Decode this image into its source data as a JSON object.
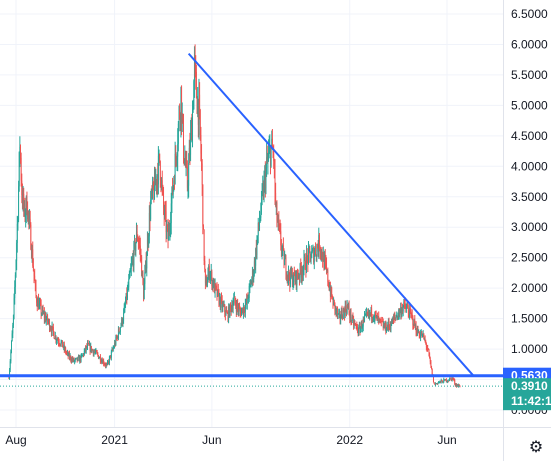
{
  "chart_data": {
    "type": "candlestick",
    "y_axis": {
      "ticks": [
        "6.5000",
        "6.0000",
        "5.5000",
        "5.0000",
        "4.5000",
        "4.0000",
        "3.5000",
        "3.0000",
        "2.5000",
        "2.0000",
        "1.5000",
        "1.0000",
        "0.5000",
        "0.0000"
      ],
      "range": [
        -0.3,
        6.7
      ]
    },
    "x_axis": {
      "ticks": [
        "Aug",
        "2021",
        "Jun",
        "2022",
        "Jun"
      ]
    },
    "price_series": [
      [
        "2020-07-21",
        0.55
      ],
      [
        "2020-07-24",
        0.95
      ],
      [
        "2020-07-28",
        1.5
      ],
      [
        "2020-08-01",
        2.5
      ],
      [
        "2020-08-04",
        3.3
      ],
      [
        "2020-08-07",
        4.4
      ],
      [
        "2020-08-10",
        3.6
      ],
      [
        "2020-08-14",
        3.2
      ],
      [
        "2020-08-18",
        3.4
      ],
      [
        "2020-08-24",
        2.8
      ],
      [
        "2020-09-01",
        1.85
      ],
      [
        "2020-09-10",
        1.6
      ],
      [
        "2020-09-20",
        1.45
      ],
      [
        "2020-10-01",
        1.2
      ],
      [
        "2020-10-10",
        1.1
      ],
      [
        "2020-10-20",
        0.9
      ],
      [
        "2020-10-30",
        0.8
      ],
      [
        "2020-11-10",
        0.85
      ],
      [
        "2020-11-20",
        1.05
      ],
      [
        "2020-12-01",
        0.95
      ],
      [
        "2020-12-10",
        0.85
      ],
      [
        "2020-12-20",
        0.72
      ],
      [
        "2020-12-28",
        0.95
      ],
      [
        "2021-01-05",
        1.2
      ],
      [
        "2021-01-15",
        1.55
      ],
      [
        "2021-01-25",
        2.2
      ],
      [
        "2021-02-05",
        2.9
      ],
      [
        "2021-02-10",
        2.6
      ],
      [
        "2021-02-15",
        1.9
      ],
      [
        "2021-02-20",
        2.6
      ],
      [
        "2021-02-26",
        3.4
      ],
      [
        "2021-03-05",
        3.7
      ],
      [
        "2021-03-12",
        4.1
      ],
      [
        "2021-03-18",
        3.3
      ],
      [
        "2021-03-25",
        2.8
      ],
      [
        "2021-04-01",
        3.6
      ],
      [
        "2021-04-08",
        4.4
      ],
      [
        "2021-04-14",
        5.2
      ],
      [
        "2021-04-18",
        4.3
      ],
      [
        "2021-04-24",
        3.7
      ],
      [
        "2021-05-01",
        4.7
      ],
      [
        "2021-05-05",
        5.6
      ],
      [
        "2021-05-08",
        5.2
      ],
      [
        "2021-05-12",
        4.9
      ],
      [
        "2021-05-16",
        4.0
      ],
      [
        "2021-05-19",
        2.8
      ],
      [
        "2021-05-22",
        2.0
      ],
      [
        "2021-05-28",
        2.3
      ],
      [
        "2021-06-05",
        2.0
      ],
      [
        "2021-06-15",
        1.75
      ],
      [
        "2021-06-25",
        1.55
      ],
      [
        "2021-07-05",
        1.8
      ],
      [
        "2021-07-15",
        1.6
      ],
      [
        "2021-07-25",
        1.75
      ],
      [
        "2021-08-05",
        2.3
      ],
      [
        "2021-08-15",
        3.2
      ],
      [
        "2021-08-25",
        4.0
      ],
      [
        "2021-09-01",
        4.3
      ],
      [
        "2021-09-05",
        4.15
      ],
      [
        "2021-09-08",
        3.3
      ],
      [
        "2021-09-12",
        3.0
      ],
      [
        "2021-09-20",
        2.5
      ],
      [
        "2021-09-28",
        2.2
      ],
      [
        "2021-10-08",
        2.15
      ],
      [
        "2021-10-18",
        2.3
      ],
      [
        "2021-10-28",
        2.5
      ],
      [
        "2021-11-05",
        2.55
      ],
      [
        "2021-11-15",
        2.75
      ],
      [
        "2021-11-25",
        2.3
      ],
      [
        "2021-12-05",
        1.8
      ],
      [
        "2021-12-15",
        1.5
      ],
      [
        "2021-12-28",
        1.7
      ],
      [
        "2022-01-05",
        1.45
      ],
      [
        "2022-01-15",
        1.3
      ],
      [
        "2022-01-25",
        1.5
      ],
      [
        "2022-02-05",
        1.6
      ],
      [
        "2022-02-15",
        1.45
      ],
      [
        "2022-02-25",
        1.35
      ],
      [
        "2022-03-05",
        1.4
      ],
      [
        "2022-03-15",
        1.55
      ],
      [
        "2022-03-25",
        1.7
      ],
      [
        "2022-04-01",
        1.65
      ],
      [
        "2022-04-08",
        1.5
      ],
      [
        "2022-04-15",
        1.3
      ],
      [
        "2022-04-25",
        1.2
      ],
      [
        "2022-05-02",
        1.0
      ],
      [
        "2022-05-08",
        0.65
      ],
      [
        "2022-05-12",
        0.42
      ],
      [
        "2022-05-18",
        0.45
      ],
      [
        "2022-05-28",
        0.48
      ],
      [
        "2022-06-05",
        0.5
      ],
      [
        "2022-06-10",
        0.52
      ],
      [
        "2022-06-14",
        0.42
      ],
      [
        "2022-06-18",
        0.4
      ],
      [
        "2022-06-22",
        0.39
      ]
    ],
    "drawings": [
      {
        "kind": "trendline",
        "from": [
          "2021-04-26",
          5.85
        ],
        "to": [
          "2022-07-12",
          0.563
        ],
        "color": "#2962ff"
      },
      {
        "kind": "horizontal",
        "value": 0.563,
        "color": "#2962ff"
      }
    ],
    "last_price_line": {
      "value": 0.391,
      "color": "#26a69a"
    },
    "price_badges": [
      {
        "text": "0.5630",
        "value": 0.563,
        "color": "#2962ff"
      },
      {
        "text": "0.3910",
        "value": 0.391,
        "color": "#26a69a"
      }
    ],
    "countdown": "11:42:1",
    "colors": {
      "up": "#26a69a",
      "down": "#ef5350",
      "grid": "#f0f3fa",
      "axis_text": "#131722"
    }
  },
  "toolbar": {
    "settings_icon": "gear-icon"
  }
}
